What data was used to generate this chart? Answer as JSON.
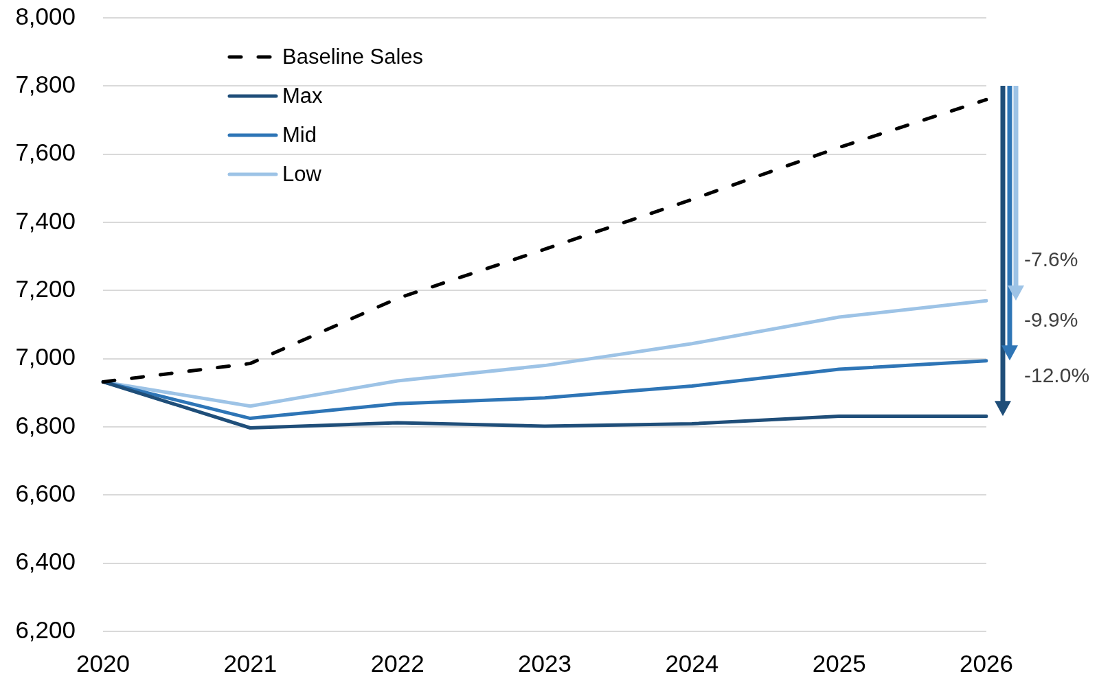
{
  "chart_data": {
    "type": "line",
    "categories": [
      "2020",
      "2021",
      "2022",
      "2023",
      "2024",
      "2025",
      "2026"
    ],
    "series": [
      {
        "name": "Baseline Sales",
        "color": "#000000",
        "line_style": "dashed",
        "values": [
          6932,
          6986,
          7177,
          7321,
          7467,
          7620,
          7760
        ]
      },
      {
        "name": "Max",
        "color": "#1f4e79",
        "values": [
          6932,
          6797,
          6812,
          6802,
          6809,
          6831,
          6831
        ]
      },
      {
        "name": "Mid",
        "color": "#2e75b6",
        "values": [
          6932,
          6825,
          6868,
          6885,
          6920,
          6969,
          6994
        ]
      },
      {
        "name": "Low",
        "color": "#9dc3e6",
        "values": [
          6932,
          6861,
          6935,
          6980,
          7044,
          7122,
          7170
        ]
      }
    ],
    "ylim": [
      6200,
      8000
    ],
    "yticks": [
      {
        "value": 6200,
        "label": "6,200"
      },
      {
        "value": 6400,
        "label": "6,400"
      },
      {
        "value": 6600,
        "label": "6,600"
      },
      {
        "value": 6800,
        "label": "6,800"
      },
      {
        "value": 7000,
        "label": "7,000"
      },
      {
        "value": 7200,
        "label": "7,200"
      },
      {
        "value": 7400,
        "label": "7,400"
      },
      {
        "value": 7600,
        "label": "7,600"
      },
      {
        "value": 7800,
        "label": "7,800"
      },
      {
        "value": 8000,
        "label": "8,000"
      }
    ],
    "grid": "y",
    "legend": "top left",
    "marker": "none",
    "line_style": "solid",
    "annotations": [
      {
        "text": "-7.6%",
        "x": "2026",
        "y": 7170
      },
      {
        "text": "-9.9%",
        "x": "2026",
        "y": 6994
      },
      {
        "text": "-12.0%",
        "x": "2026",
        "y": 6831
      }
    ]
  }
}
